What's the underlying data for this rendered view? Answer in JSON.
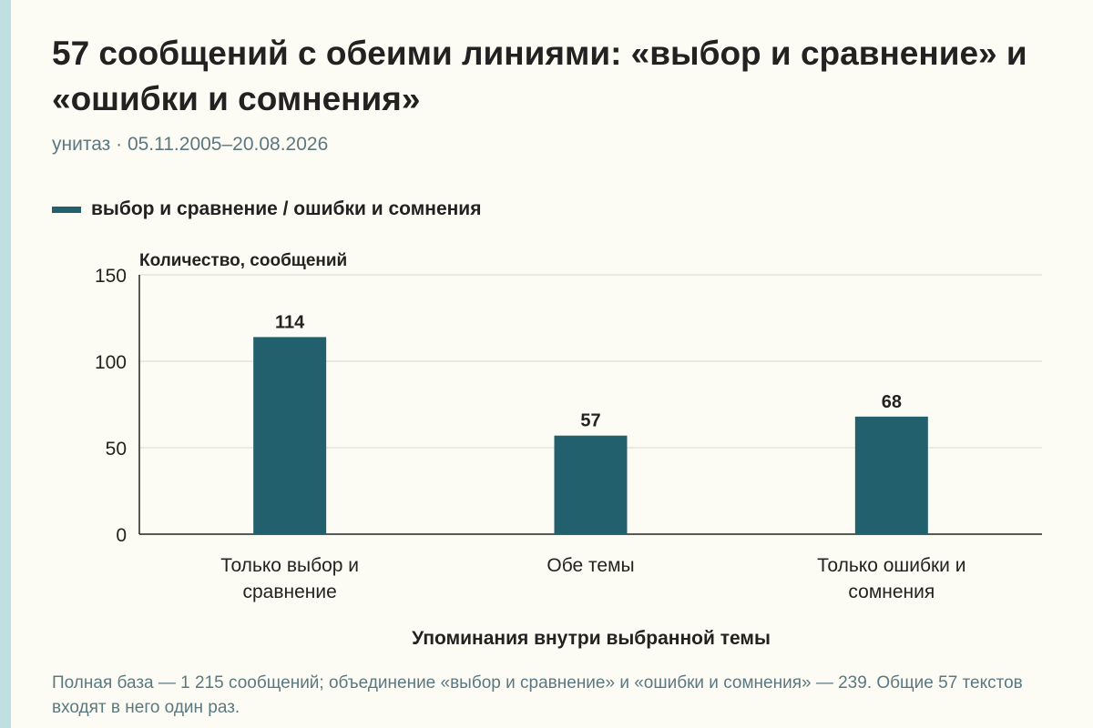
{
  "header": {
    "title": "57 сообщений с обеими линиями: «выбор и сравнение» и «ошибки и сомнения»",
    "subtitle": "унитаз · 05.11.2005–20.08.2026"
  },
  "legend": {
    "label": "выбор и сравнение / ошибки и сомнения",
    "color": "#23606e"
  },
  "chart_data": {
    "type": "bar",
    "categories": [
      [
        "Только выбор и",
        "сравнение"
      ],
      [
        "Обе темы"
      ],
      [
        "Только ошибки и",
        "сомнения"
      ]
    ],
    "values": [
      114,
      57,
      68
    ],
    "value_labels": [
      "114",
      "57",
      "68"
    ],
    "ylabel": "Количество, сообщений",
    "xlabel": "Упоминания внутри выбранной темы",
    "ylim": [
      0,
      150
    ],
    "yticks": [
      0,
      50,
      100,
      150
    ],
    "grid": true,
    "bar_color": "#23606e"
  },
  "footnote": "Полная база — 1 215 сообщений; объединение «выбор и сравнение» и «ошибки и сомнения» — 239. Общие 57 текстов входят в него один раз."
}
